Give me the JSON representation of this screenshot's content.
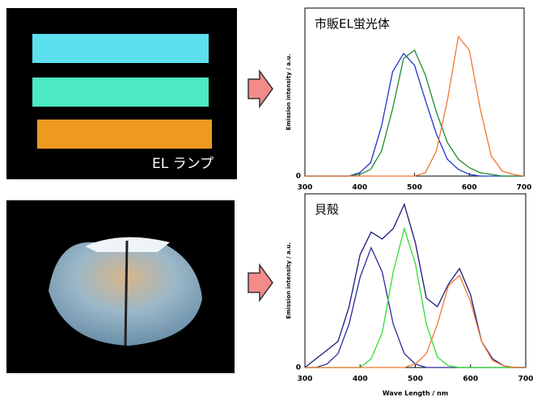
{
  "photos": [
    {
      "caption": "EL ランプ"
    }
  ],
  "chart_data": [
    {
      "type": "line",
      "title": "市販EL蛍光体",
      "y_label": "Emission intensity / a.u.",
      "x": [
        300,
        320,
        340,
        360,
        380,
        400,
        420,
        440,
        460,
        480,
        500,
        520,
        540,
        560,
        580,
        600,
        620,
        640,
        660,
        680,
        700
      ],
      "xlim": [
        300,
        700
      ],
      "xticks": [
        300,
        400,
        500,
        600,
        700
      ],
      "ylim": [
        0,
        1
      ],
      "yticks": [
        0
      ],
      "series": [
        {
          "color": "#2233cc",
          "values": [
            0,
            0,
            0,
            0,
            0,
            0.02,
            0.08,
            0.3,
            0.62,
            0.73,
            0.66,
            0.45,
            0.25,
            0.1,
            0.04,
            0.01,
            0,
            0,
            0,
            0,
            0
          ]
        },
        {
          "color": "#228833",
          "values": [
            0,
            0,
            0,
            0,
            0,
            0.01,
            0.04,
            0.15,
            0.4,
            0.7,
            0.75,
            0.6,
            0.38,
            0.2,
            0.1,
            0.05,
            0.02,
            0.01,
            0,
            0,
            0
          ]
        },
        {
          "color": "#ee7733",
          "values": [
            0,
            0,
            0,
            0,
            0,
            0,
            0,
            0,
            0,
            0,
            0,
            0.02,
            0.15,
            0.45,
            0.83,
            0.75,
            0.4,
            0.12,
            0.03,
            0.01,
            0
          ]
        }
      ]
    },
    {
      "type": "line",
      "title": "貝殻",
      "y_label": "Emission intensity / a.u.",
      "x_label": "Wave Length / nm",
      "x": [
        300,
        320,
        340,
        360,
        380,
        400,
        420,
        440,
        460,
        480,
        500,
        520,
        540,
        560,
        580,
        600,
        620,
        640,
        660,
        680,
        700
      ],
      "xlim": [
        300,
        700
      ],
      "xticks": [
        300,
        400,
        500,
        600,
        700
      ],
      "ylim": [
        0,
        1
      ],
      "yticks": [
        0
      ],
      "series": [
        {
          "color": "#1a1a80",
          "values": [
            0,
            0.05,
            0.1,
            0.15,
            0.35,
            0.65,
            0.78,
            0.74,
            0.8,
            0.94,
            0.72,
            0.4,
            0.35,
            0.48,
            0.57,
            0.42,
            0.15,
            0.05,
            0.01,
            0,
            0
          ]
        },
        {
          "color": "#2a2a99",
          "values": [
            0,
            0,
            0.02,
            0.08,
            0.25,
            0.52,
            0.69,
            0.55,
            0.25,
            0.08,
            0.02,
            0,
            0,
            0,
            0,
            0,
            0,
            0,
            0,
            0,
            0
          ]
        },
        {
          "color": "#33dd33",
          "values": [
            0,
            0,
            0,
            0,
            0,
            0,
            0.05,
            0.2,
            0.55,
            0.8,
            0.6,
            0.25,
            0.06,
            0.01,
            0,
            0,
            0,
            0,
            0,
            0,
            0
          ]
        },
        {
          "color": "#ee7733",
          "values": [
            0,
            0,
            0,
            0,
            0,
            0,
            0,
            0,
            0,
            0,
            0.02,
            0.08,
            0.25,
            0.47,
            0.53,
            0.38,
            0.15,
            0.04,
            0.01,
            0,
            0
          ]
        }
      ]
    }
  ]
}
